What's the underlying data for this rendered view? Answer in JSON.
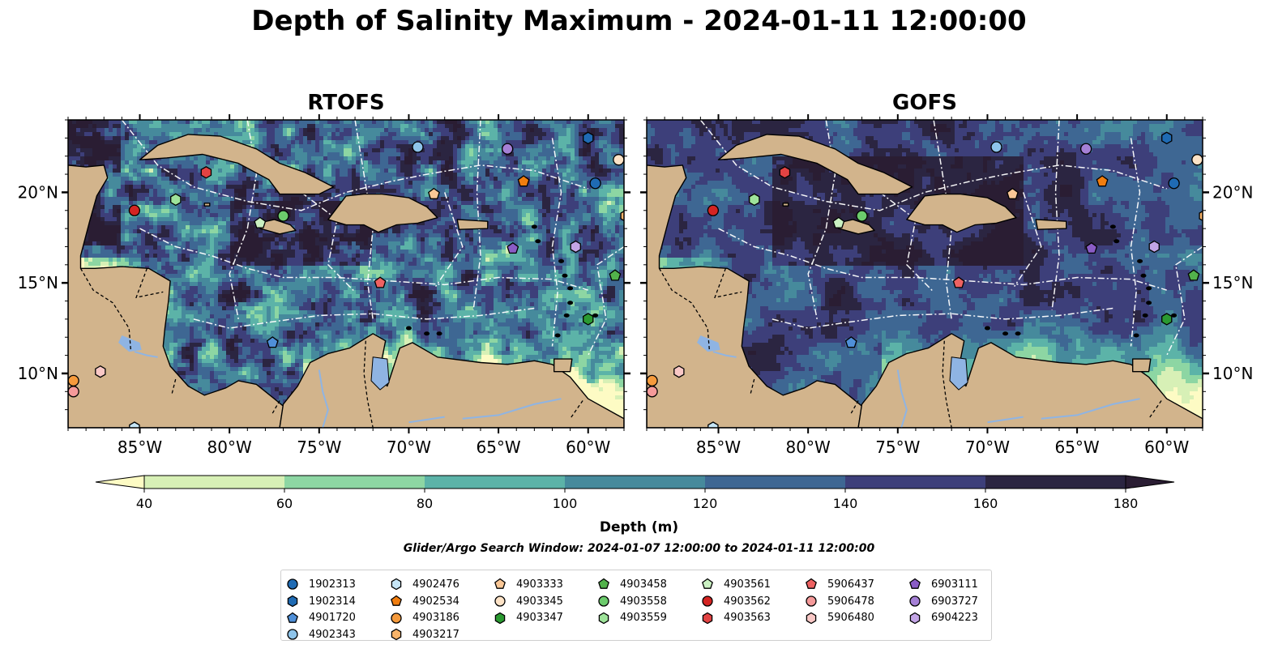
{
  "figure": {
    "title": "Depth of Salinity Maximum - 2024-01-11 12:00:00",
    "search_window": "Glider/Argo Search Window: 2024-01-07 12:00:00 to 2024-01-11 12:00:00"
  },
  "colors": {
    "land": "#d2b48c",
    "water_body": "#8fb4e3",
    "rivers": "#8fb4e3",
    "eez_lines": "#ffffff",
    "coastline": "#000000"
  },
  "map_extent": {
    "lon": [
      -89,
      -58
    ],
    "lat": [
      7,
      24
    ]
  },
  "axes": {
    "x_ticks": [
      {
        "value": -85,
        "label": "85°W"
      },
      {
        "value": -80,
        "label": "80°W"
      },
      {
        "value": -75,
        "label": "75°W"
      },
      {
        "value": -70,
        "label": "70°W"
      },
      {
        "value": -65,
        "label": "65°W"
      },
      {
        "value": -60,
        "label": "60°W"
      }
    ],
    "y_ticks": [
      {
        "value": 20,
        "label": "20°N"
      },
      {
        "value": 15,
        "label": "15°N"
      },
      {
        "value": 10,
        "label": "10°N"
      }
    ]
  },
  "panels": [
    {
      "title": "RTOFS",
      "y_labels_side": "left"
    },
    {
      "title": "GOFS",
      "y_labels_side": "right"
    }
  ],
  "colorbar": {
    "label": "Depth (m)",
    "boundaries": [
      40,
      60,
      80,
      100,
      120,
      140,
      160,
      180
    ],
    "labels": [
      "40",
      "60",
      "80",
      "100",
      "120",
      "140",
      "160",
      "180"
    ],
    "colors": [
      "#d7f0b6",
      "#8dd6a3",
      "#5cb3a8",
      "#468a9c",
      "#3e6793",
      "#3d3f7a",
      "#2b2541"
    ],
    "extend": "both",
    "under_color": "#fdfbc4",
    "over_color": "#2a1d33"
  },
  "floats": [
    {
      "id": "1902313",
      "marker": "circle",
      "color": "#1f6bb4",
      "lon": -59.6,
      "lat": 20.5
    },
    {
      "id": "1902314",
      "marker": "hexagon",
      "color": "#1f6bb4",
      "lon": -60.0,
      "lat": 23.0
    },
    {
      "id": "4901720",
      "marker": "pentagon",
      "color": "#4f8fd8",
      "lon": -77.6,
      "lat": 11.7
    },
    {
      "id": "4902343",
      "marker": "circle",
      "color": "#8ec4ea",
      "lon": -69.5,
      "lat": 22.5
    },
    {
      "id": "4902476",
      "marker": "hexagon",
      "color": "#c6e6f7",
      "lon": -85.3,
      "lat": 7.0
    },
    {
      "id": "4902534",
      "marker": "pentagon",
      "color": "#f07d0f",
      "lon": -63.6,
      "lat": 20.6
    },
    {
      "id": "4903186",
      "marker": "circle",
      "color": "#f59a3c",
      "lon": -88.7,
      "lat": 9.6
    },
    {
      "id": "4903217",
      "marker": "hexagon",
      "color": "#f8b46a",
      "lon": -57.9,
      "lat": 18.7
    },
    {
      "id": "4903333",
      "marker": "pentagon",
      "color": "#fac796",
      "lon": -68.6,
      "lat": 19.9
    },
    {
      "id": "4903345",
      "marker": "circle",
      "color": "#fde3c7",
      "lon": -58.3,
      "lat": 21.8
    },
    {
      "id": "4903347",
      "marker": "hexagon",
      "color": "#2a9a31",
      "lon": -60.0,
      "lat": 13.0
    },
    {
      "id": "4903458",
      "marker": "pentagon",
      "color": "#52b24b",
      "lon": -58.5,
      "lat": 15.4
    },
    {
      "id": "4903558",
      "marker": "circle",
      "color": "#6ccb6c",
      "lon": -77.0,
      "lat": 18.7
    },
    {
      "id": "4903559",
      "marker": "hexagon",
      "color": "#9ee39a",
      "lon": -83.0,
      "lat": 19.6
    },
    {
      "id": "4903561",
      "marker": "pentagon",
      "color": "#caf1c2",
      "lon": -78.3,
      "lat": 18.3
    },
    {
      "id": "4903562",
      "marker": "circle",
      "color": "#d42422",
      "lon": -85.3,
      "lat": 19.0
    },
    {
      "id": "4903563",
      "marker": "hexagon",
      "color": "#e24343",
      "lon": -81.3,
      "lat": 21.1
    },
    {
      "id": "5906437",
      "marker": "pentagon",
      "color": "#ee6262",
      "lon": -71.6,
      "lat": 15.0
    },
    {
      "id": "5906478",
      "marker": "circle",
      "color": "#f59a9a",
      "lon": -88.7,
      "lat": 9.0
    },
    {
      "id": "5906480",
      "marker": "hexagon",
      "color": "#f9c8c6",
      "lon": -87.2,
      "lat": 10.1
    },
    {
      "id": "6903111",
      "marker": "pentagon",
      "color": "#8a5cc6",
      "lon": -64.2,
      "lat": 16.9
    },
    {
      "id": "6903727",
      "marker": "circle",
      "color": "#a580d6",
      "lon": -64.5,
      "lat": 22.4
    },
    {
      "id": "6904223",
      "marker": "hexagon",
      "color": "#c3a5e6",
      "lon": -60.7,
      "lat": 17.0
    }
  ]
}
